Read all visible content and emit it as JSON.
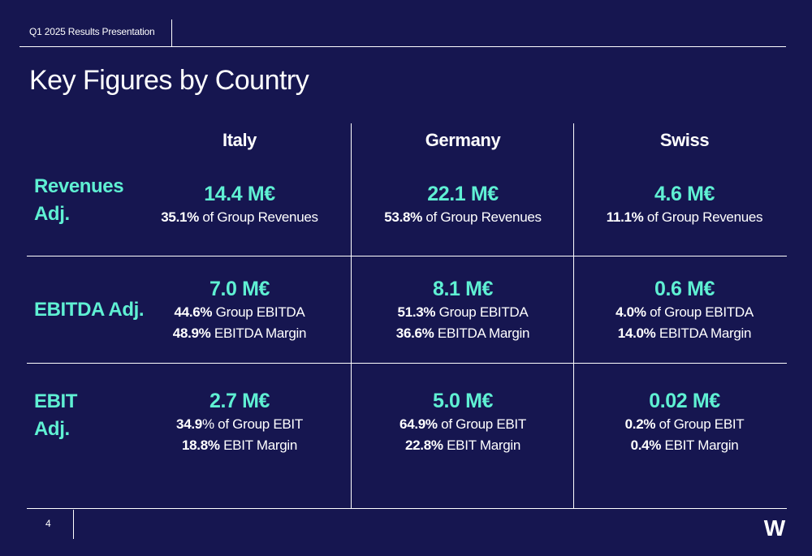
{
  "header": {
    "label": "Q1 2025 Results Presentation"
  },
  "title": "Key Figures by Country",
  "columns": [
    "Italy",
    "Germany",
    "Swiss"
  ],
  "rows": [
    {
      "label_line1": "Revenues",
      "label_line2": "Adj.",
      "cells": [
        {
          "value": "14.4 M€",
          "lines": [
            {
              "bold": "35.1%",
              "text": " of Group Revenues"
            }
          ]
        },
        {
          "value": "22.1 M€",
          "lines": [
            {
              "bold": "53.8%",
              "text": " of Group Revenues"
            }
          ]
        },
        {
          "value": "4.6 M€",
          "lines": [
            {
              "bold": "11.1%",
              "text": " of Group Revenues"
            }
          ]
        }
      ]
    },
    {
      "label_line1": "EBITDA Adj.",
      "label_line2": "",
      "cells": [
        {
          "value": "7.0 M€",
          "lines": [
            {
              "bold": "44.6%",
              "text": " Group EBITDA"
            },
            {
              "bold": "48.9%",
              "text": " EBITDA Margin"
            }
          ]
        },
        {
          "value": "8.1 M€",
          "lines": [
            {
              "bold": "51.3%",
              "text": " Group EBITDA"
            },
            {
              "bold": "36.6%",
              "text": " EBITDA Margin"
            }
          ]
        },
        {
          "value": "0.6 M€",
          "lines": [
            {
              "bold": "4.0%",
              "text": " of Group EBITDA"
            },
            {
              "bold": "14.0%",
              "text": " EBITDA Margin"
            }
          ]
        }
      ]
    },
    {
      "label_line1": "EBIT",
      "label_line2": "Adj.",
      "cells": [
        {
          "value": "2.7 M€",
          "lines": [
            {
              "bold": "34.9",
              "text": "% of Group EBIT"
            },
            {
              "bold": "18.8%",
              "text": " EBIT Margin"
            }
          ]
        },
        {
          "value": "5.0 M€",
          "lines": [
            {
              "bold": "64.9%",
              "text": " of Group EBIT"
            },
            {
              "bold": "22.8%",
              "text": " EBIT Margin"
            }
          ]
        },
        {
          "value": "0.02 M€",
          "lines": [
            {
              "bold": "0.2%",
              "text": " of Group EBIT"
            },
            {
              "bold": "0.4%",
              "text": " EBIT Margin"
            }
          ]
        }
      ]
    }
  ],
  "footer": {
    "page_number": "4",
    "logo_text": "W"
  },
  "colors": {
    "background": "#161650",
    "accent": "#5ff0d3",
    "text": "#ffffff"
  }
}
